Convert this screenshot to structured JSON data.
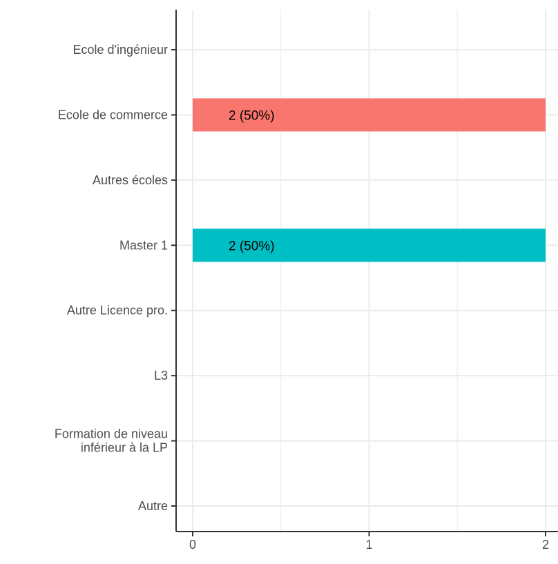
{
  "chart_data": {
    "type": "bar",
    "orientation": "horizontal",
    "categories": [
      "Ecole d'ingénieur",
      "Ecole de commerce",
      "Autres écoles",
      "Master 1",
      "Autre Licence pro.",
      "L3",
      "Formation de niveau\ninférieur à la LP",
      "Autre"
    ],
    "values": [
      0,
      2,
      0,
      2,
      0,
      0,
      0,
      0
    ],
    "data_labels": [
      "",
      "2 (50%)",
      "",
      "2 (50%)",
      "",
      "",
      "",
      ""
    ],
    "bar_colors": [
      "#F8766D",
      "#F8766D",
      "#F8766D",
      "#00BFC4",
      "#F8766D",
      "#F8766D",
      "#F8766D",
      "#F8766D"
    ],
    "x_ticks": [
      "0",
      "1",
      "2"
    ],
    "xlim": [
      0,
      2
    ],
    "grid": true,
    "legend": "none"
  }
}
